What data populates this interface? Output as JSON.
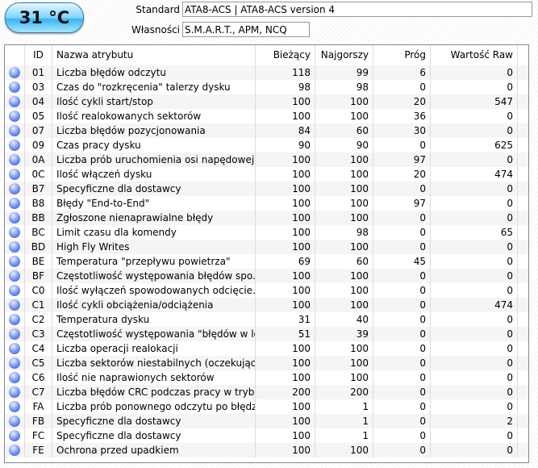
{
  "temperature": "31 °C",
  "standard": {
    "label": "Standard",
    "value": "ATA8-ACS | ATA8-ACS version 4"
  },
  "features": {
    "label": "Własności",
    "value": "S.M.A.R.T., APM, NCQ"
  },
  "columns": [
    "",
    "ID",
    "Nazwa atrybutu",
    "Bieżący",
    "Najgorszy",
    "Próg",
    "Wartość Raw"
  ],
  "status_color": "#5070e0",
  "rows": [
    [
      "01",
      "Liczba błędów odczytu",
      "118",
      "99",
      "6",
      "0"
    ],
    [
      "03",
      "Czas do \"rozkręcenia\" talerzy dysku",
      "98",
      "98",
      "0",
      "0"
    ],
    [
      "04",
      "Ilość cykli start/stop",
      "100",
      "100",
      "20",
      "547"
    ],
    [
      "05",
      "Ilość realokowanych sektorów",
      "100",
      "100",
      "36",
      "0"
    ],
    [
      "07",
      "Liczba błędów pozycjonowania",
      "84",
      "60",
      "30",
      "0"
    ],
    [
      "09",
      "Czas pracy dysku",
      "90",
      "90",
      "0",
      "625"
    ],
    [
      "0A",
      "Liczba prób uruchomienia osi napędowej...",
      "100",
      "100",
      "97",
      "0"
    ],
    [
      "0C",
      "Ilość włączeń dysku",
      "100",
      "100",
      "20",
      "474"
    ],
    [
      "B7",
      "Specyficzne dla dostawcy",
      "100",
      "100",
      "0",
      "0"
    ],
    [
      "B8",
      "Błędy \"End-to-End\"",
      "100",
      "100",
      "97",
      "0"
    ],
    [
      "BB",
      "Zgłoszone nienaprawialne błędy",
      "100",
      "100",
      "0",
      "0"
    ],
    [
      "BC",
      "Limit czasu dla komendy",
      "100",
      "98",
      "0",
      "65"
    ],
    [
      "BD",
      "High Fly Writes",
      "100",
      "100",
      "0",
      "0"
    ],
    [
      "BE",
      "Temperatura \"przepływu powietrza\"",
      "69",
      "60",
      "45",
      "0"
    ],
    [
      "BF",
      "Częstotliwość występowania błędów spo...",
      "100",
      "100",
      "0",
      "0"
    ],
    [
      "C0",
      "Ilość wyłączeń spowodowanych odcięcie...",
      "100",
      "100",
      "0",
      "0"
    ],
    [
      "C1",
      "Ilość cykli obciążenia/odciążenia",
      "100",
      "100",
      "0",
      "474"
    ],
    [
      "C2",
      "Temperatura dysku",
      "31",
      "40",
      "0",
      "0"
    ],
    [
      "C3",
      "Częstotliwość występowania \"błędów w lo...",
      "51",
      "39",
      "0",
      "0"
    ],
    [
      "C4",
      "Liczba operacji realokacji",
      "100",
      "100",
      "0",
      "0"
    ],
    [
      "C5",
      "Liczba sektorów niestabilnych (oczekując...",
      "100",
      "100",
      "0",
      "0"
    ],
    [
      "C6",
      "Ilość nie naprawionych sektorów",
      "100",
      "100",
      "0",
      "0"
    ],
    [
      "C7",
      "Liczba błędów CRC podczas pracy w trybi...",
      "200",
      "200",
      "0",
      "0"
    ],
    [
      "FA",
      "Liczba prób ponownego odczytu po błędzie",
      "100",
      "1",
      "0",
      "0"
    ],
    [
      "FB",
      "Specyficzne dla dostawcy",
      "100",
      "1",
      "0",
      "2"
    ],
    [
      "FC",
      "Specyficzne dla dostawcy",
      "100",
      "1",
      "0",
      "0"
    ],
    [
      "FE",
      "Ochrona przed upadkiem",
      "100",
      "100",
      "0",
      "0"
    ]
  ]
}
